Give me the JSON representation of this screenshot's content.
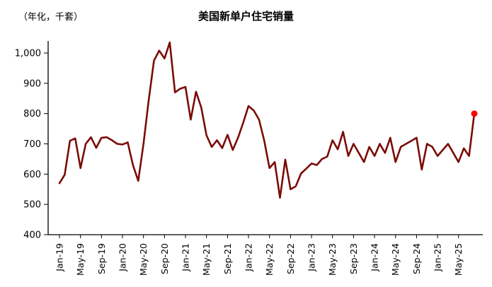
{
  "header": {
    "title": "美国新单户住宅销量",
    "unit_label": "（年化，千套）"
  },
  "chart_data": {
    "type": "line",
    "title": "美国新单户住宅销量",
    "ylabel": "（年化，千套）",
    "xlabel": "",
    "grid": false,
    "legend_position": "none",
    "ylim": [
      400,
      1000
    ],
    "yticks": [
      400,
      500,
      600,
      700,
      800,
      900,
      1000
    ],
    "x_tick_every": 4,
    "x": [
      "Jan-19",
      "Feb-19",
      "Mar-19",
      "Apr-19",
      "May-19",
      "Jun-19",
      "Jul-19",
      "Aug-19",
      "Sep-19",
      "Oct-19",
      "Nov-19",
      "Dec-19",
      "Jan-20",
      "Feb-20",
      "Mar-20",
      "Apr-20",
      "May-20",
      "Jun-20",
      "Jul-20",
      "Aug-20",
      "Sep-20",
      "Oct-20",
      "Nov-20",
      "Dec-20",
      "Jan-21",
      "Feb-21",
      "Mar-21",
      "Apr-21",
      "May-21",
      "Jun-21",
      "Jul-21",
      "Aug-21",
      "Sep-21",
      "Oct-21",
      "Nov-21",
      "Dec-21",
      "Jan-22",
      "Feb-22",
      "Mar-22",
      "Apr-22",
      "May-22",
      "Jun-22",
      "Jul-22",
      "Aug-22",
      "Sep-22",
      "Oct-22",
      "Nov-22",
      "Dec-22",
      "Jan-23",
      "Feb-23",
      "Mar-23",
      "Apr-23",
      "May-23",
      "Jun-23",
      "Jul-23",
      "Aug-23",
      "Sep-23",
      "Oct-23",
      "Nov-23",
      "Dec-23",
      "Jan-24",
      "Feb-24",
      "Mar-24",
      "Apr-24",
      "May-24",
      "Jun-24",
      "Jul-24",
      "Aug-24",
      "Sep-24",
      "Oct-24",
      "Nov-24",
      "Dec-24",
      "Jan-25",
      "Feb-25",
      "Mar-25",
      "Apr-25",
      "May-25",
      "Jun-25",
      "Jul-25",
      "Aug-25"
    ],
    "series": [
      {
        "name": "美国新单户住宅销量",
        "color": "#7a0c06",
        "values": [
          570,
          598,
          710,
          718,
          620,
          700,
          722,
          687,
          720,
          722,
          712,
          700,
          698,
          705,
          630,
          578,
          700,
          845,
          975,
          1008,
          982,
          1035,
          870,
          882,
          888,
          780,
          872,
          820,
          728,
          690,
          712,
          686,
          730,
          680,
          720,
          770,
          825,
          810,
          780,
          710,
          620,
          640,
          522,
          648,
          550,
          560,
          602,
          618,
          635,
          630,
          650,
          658,
          712,
          682,
          740,
          660,
          700,
          670,
          640,
          690,
          660,
          700,
          670,
          720,
          640,
          690,
          700,
          710,
          720,
          615,
          700,
          690,
          660,
          680,
          700,
          670,
          640,
          685,
          660,
          800
        ]
      }
    ],
    "last_point_marker": {
      "color": "#ff0000",
      "value": 800,
      "label": "Aug-25"
    },
    "axis_color": "#000000"
  }
}
